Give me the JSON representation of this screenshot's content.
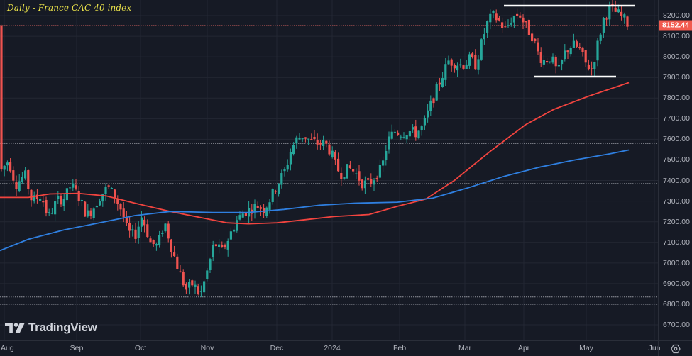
{
  "header": {
    "title": "Daily - France CAC 40 index"
  },
  "branding": {
    "logo_text": "TradingView"
  },
  "price_axis": {
    "ticks": [
      "8200.00",
      "8100.00",
      "8000.00",
      "7900.00",
      "7800.00",
      "7700.00",
      "7600.00",
      "7500.00",
      "7400.00",
      "7300.00",
      "7200.00",
      "7100.00",
      "7000.00",
      "6900.00",
      "6800.00",
      "6700.00"
    ],
    "last_price": "8152.44"
  },
  "time_axis": {
    "ticks": [
      "Aug",
      "Sep",
      "Oct",
      "Nov",
      "Dec",
      "2024",
      "Feb",
      "Mar",
      "Apr",
      "May",
      "Jun"
    ]
  },
  "colors": {
    "background": "#161a25",
    "grid": "#232733",
    "up": "#26a69a",
    "down": "#ef5350",
    "ma_red": "#f2443f",
    "ma_blue": "#2f7fe0",
    "title": "#e8e04a",
    "last_price_bg": "#f15a4f",
    "annotation": "#ffffff"
  },
  "icons": {
    "settings": "settings-hexagon-icon",
    "logo": "tradingview-logo-icon"
  },
  "chart_data": {
    "type": "candlestick",
    "title": "Daily - France CAC 40 index",
    "xlabel": "",
    "ylabel": "",
    "ylim": [
      6650,
      8260
    ],
    "x_ticks": [
      "Aug",
      "Sep",
      "Oct",
      "Nov",
      "Dec",
      "2024",
      "Feb",
      "Mar",
      "Apr",
      "May",
      "Jun"
    ],
    "last_price": 8152.44,
    "horizontal_levels_dotted": [
      8152.44,
      7580,
      7385,
      6835,
      6800
    ],
    "annotations": [
      {
        "type": "resistance_line",
        "price": 8255,
        "x_range": [
          "late Mar",
          "mid May"
        ]
      },
      {
        "type": "support_line",
        "price": 7900,
        "x_range": [
          "mid Apr",
          "mid May"
        ]
      }
    ],
    "series": [
      {
        "name": "Moving average (red, ~100-day)",
        "approx_points": [
          {
            "x": "Aug",
            "y": 7315
          },
          {
            "x": "Sep",
            "y": 7335
          },
          {
            "x": "Oct",
            "y": 7260
          },
          {
            "x": "Nov",
            "y": 7195
          },
          {
            "x": "Dec",
            "y": 7200
          },
          {
            "x": "2024",
            "y": 7225
          },
          {
            "x": "Feb",
            "y": 7270
          },
          {
            "x": "Mar",
            "y": 7400
          },
          {
            "x": "Apr",
            "y": 7680
          },
          {
            "x": "May",
            "y": 7820
          },
          {
            "x": "mid May",
            "y": 7870
          }
        ]
      },
      {
        "name": "Moving average (blue, ~200-day)",
        "approx_points": [
          {
            "x": "Aug",
            "y": 7060
          },
          {
            "x": "Sep",
            "y": 7190
          },
          {
            "x": "Oct",
            "y": 7250
          },
          {
            "x": "Nov",
            "y": 7245
          },
          {
            "x": "Dec",
            "y": 7260
          },
          {
            "x": "2024",
            "y": 7290
          },
          {
            "x": "Feb",
            "y": 7295
          },
          {
            "x": "Mar",
            "y": 7360
          },
          {
            "x": "Apr",
            "y": 7440
          },
          {
            "x": "May",
            "y": 7510
          },
          {
            "x": "mid May",
            "y": 7545
          }
        ]
      },
      {
        "name": "CAC 40 close (approx)",
        "approx_points": [
          {
            "x": "Aug",
            "y": 7420
          },
          {
            "x": "Sep",
            "y": 7250
          },
          {
            "x": "Oct",
            "y": 7100
          },
          {
            "x": "late Oct",
            "y": 6800
          },
          {
            "x": "Nov",
            "y": 7050
          },
          {
            "x": "Dec",
            "y": 7350
          },
          {
            "x": "mid Dec",
            "y": 7580
          },
          {
            "x": "2024",
            "y": 7500
          },
          {
            "x": "mid Jan",
            "y": 7400
          },
          {
            "x": "Feb",
            "y": 7600
          },
          {
            "x": "Mar",
            "y": 7950
          },
          {
            "x": "late Mar",
            "y": 8200
          },
          {
            "x": "Apr",
            "y": 8150
          },
          {
            "x": "mid Apr",
            "y": 7950
          },
          {
            "x": "May",
            "y": 7950
          },
          {
            "x": "mid May",
            "y": 8200
          },
          {
            "x": "last",
            "y": 8152.44
          }
        ]
      }
    ]
  }
}
